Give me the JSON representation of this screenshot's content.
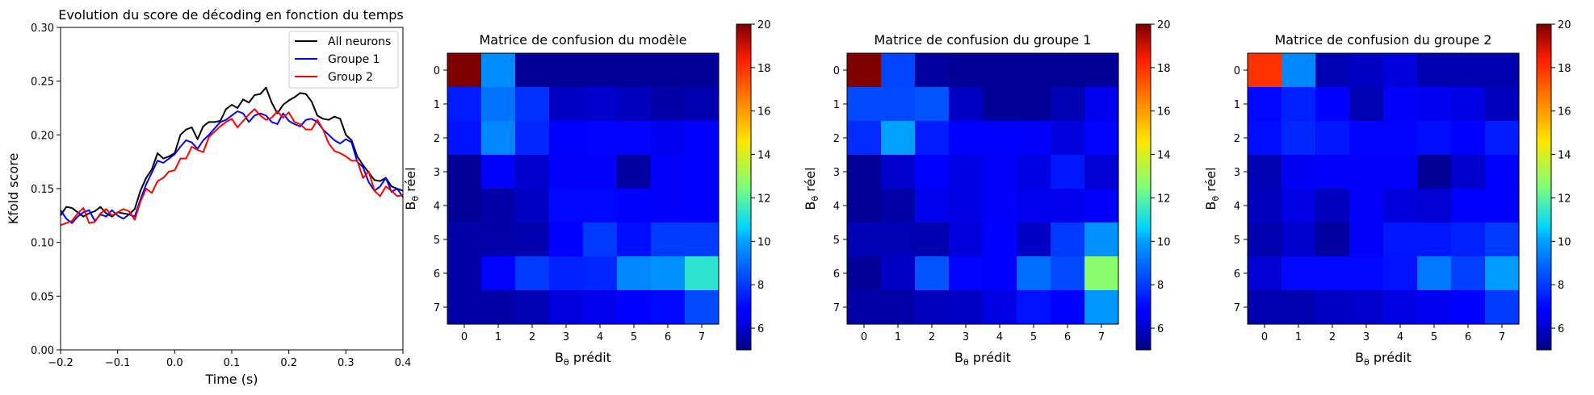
{
  "chart_data": [
    {
      "type": "line",
      "title": "Evolution du score de décoding en fonction du temps",
      "xlabel": "Time (s)",
      "ylabel": "Kfold score",
      "xlim": [
        -0.2,
        0.4
      ],
      "ylim": [
        0.0,
        0.3
      ],
      "xticks": [
        -0.2,
        -0.1,
        0.0,
        0.1,
        0.2,
        0.3,
        0.4
      ],
      "xtick_labels": [
        "−0.2",
        "−0.1",
        "0.0",
        "0.1",
        "0.2",
        "0.3",
        "0.4"
      ],
      "yticks": [
        0.0,
        0.05,
        0.1,
        0.15,
        0.2,
        0.25,
        0.3
      ],
      "ytick_labels": [
        "0.00",
        "0.05",
        "0.10",
        "0.15",
        "0.20",
        "0.25",
        "0.30"
      ],
      "legend_position": "top-right",
      "grid": false,
      "x": [
        -0.2,
        -0.19,
        -0.18,
        -0.17,
        -0.16,
        -0.15,
        -0.14,
        -0.13,
        -0.12,
        -0.11,
        -0.1,
        -0.09,
        -0.08,
        -0.07,
        -0.06,
        -0.05,
        -0.04,
        -0.03,
        -0.02,
        -0.01,
        0.0,
        0.01,
        0.02,
        0.03,
        0.04,
        0.05,
        0.06,
        0.07,
        0.08,
        0.09,
        0.1,
        0.11,
        0.12,
        0.13,
        0.14,
        0.15,
        0.16,
        0.17,
        0.18,
        0.19,
        0.2,
        0.21,
        0.22,
        0.23,
        0.24,
        0.25,
        0.26,
        0.27,
        0.28,
        0.29,
        0.3,
        0.31,
        0.32,
        0.33,
        0.34,
        0.35,
        0.36,
        0.37,
        0.38,
        0.39,
        0.4
      ],
      "series": [
        {
          "name": "All neurons",
          "color": "#000000",
          "values": [
            0.125,
            0.133,
            0.132,
            0.128,
            0.124,
            0.127,
            0.129,
            0.133,
            0.127,
            0.124,
            0.128,
            0.127,
            0.126,
            0.131,
            0.148,
            0.16,
            0.168,
            0.183,
            0.178,
            0.18,
            0.183,
            0.2,
            0.205,
            0.207,
            0.196,
            0.208,
            0.212,
            0.212,
            0.213,
            0.224,
            0.228,
            0.225,
            0.233,
            0.23,
            0.237,
            0.238,
            0.244,
            0.23,
            0.22,
            0.228,
            0.232,
            0.235,
            0.239,
            0.238,
            0.231,
            0.218,
            0.215,
            0.214,
            0.217,
            0.215,
            0.2,
            0.195,
            0.18,
            0.172,
            0.165,
            0.158,
            0.157,
            0.16,
            0.152,
            0.15,
            0.148
          ]
        },
        {
          "name": "Groupe 1",
          "color": "#0000ff",
          "values": [
            0.13,
            0.122,
            0.118,
            0.124,
            0.128,
            0.13,
            0.12,
            0.126,
            0.124,
            0.13,
            0.125,
            0.122,
            0.126,
            0.124,
            0.14,
            0.154,
            0.165,
            0.176,
            0.174,
            0.178,
            0.182,
            0.189,
            0.195,
            0.193,
            0.187,
            0.195,
            0.2,
            0.206,
            0.212,
            0.214,
            0.218,
            0.222,
            0.22,
            0.212,
            0.218,
            0.22,
            0.218,
            0.212,
            0.21,
            0.22,
            0.213,
            0.21,
            0.208,
            0.214,
            0.215,
            0.212,
            0.205,
            0.2,
            0.195,
            0.192,
            0.196,
            0.193,
            0.175,
            0.17,
            0.156,
            0.148,
            0.152,
            0.16,
            0.147,
            0.15,
            0.142
          ]
        },
        {
          "name": "Group 2",
          "color": "#ff0000",
          "values": [
            0.116,
            0.118,
            0.12,
            0.127,
            0.132,
            0.118,
            0.119,
            0.127,
            0.131,
            0.125,
            0.128,
            0.131,
            0.129,
            0.121,
            0.138,
            0.15,
            0.146,
            0.157,
            0.16,
            0.166,
            0.167,
            0.178,
            0.178,
            0.189,
            0.186,
            0.184,
            0.198,
            0.203,
            0.208,
            0.212,
            0.215,
            0.207,
            0.213,
            0.219,
            0.224,
            0.218,
            0.214,
            0.216,
            0.222,
            0.216,
            0.221,
            0.212,
            0.21,
            0.205,
            0.205,
            0.214,
            0.205,
            0.192,
            0.185,
            0.183,
            0.18,
            0.176,
            0.176,
            0.16,
            0.166,
            0.148,
            0.143,
            0.152,
            0.148,
            0.143,
            0.144
          ]
        }
      ]
    },
    {
      "type": "heatmap",
      "title": "Matrice de confusion du modèle",
      "xlabel": "B_θ prédit",
      "ylabel": "B_θ réel",
      "x_categories": [
        "0",
        "1",
        "2",
        "3",
        "4",
        "5",
        "6",
        "7"
      ],
      "y_categories": [
        "0",
        "1",
        "2",
        "3",
        "4",
        "5",
        "6",
        "7"
      ],
      "colormap": "jet",
      "vmin": 5,
      "vmax": 20,
      "colorbar_ticks": [
        6,
        8,
        10,
        12,
        14,
        16,
        18,
        20
      ],
      "values": [
        [
          20.0,
          9.6,
          5.3,
          5.3,
          5.3,
          5.3,
          5.3,
          5.3
        ],
        [
          7.4,
          9.1,
          7.8,
          5.9,
          6.0,
          5.8,
          5.5,
          5.6
        ],
        [
          7.2,
          9.5,
          7.6,
          6.8,
          6.9,
          6.9,
          6.5,
          6.8
        ],
        [
          5.3,
          6.8,
          6.0,
          6.6,
          6.6,
          5.4,
          6.6,
          6.7
        ],
        [
          5.3,
          5.5,
          5.9,
          7.0,
          7.0,
          6.7,
          6.6,
          6.8
        ],
        [
          5.5,
          5.5,
          5.6,
          6.7,
          8.0,
          7.1,
          8.0,
          8.0
        ],
        [
          5.5,
          6.9,
          8.0,
          7.5,
          7.6,
          9.5,
          9.7,
          11.3
        ],
        [
          5.5,
          5.5,
          5.7,
          6.2,
          6.4,
          6.8,
          7.0,
          8.3
        ]
      ]
    },
    {
      "type": "heatmap",
      "title": "Matrice de confusion du groupe 1",
      "xlabel": "B_θ prédit",
      "ylabel": "B_θ réel",
      "x_categories": [
        "0",
        "1",
        "2",
        "3",
        "4",
        "5",
        "6",
        "7"
      ],
      "y_categories": [
        "0",
        "1",
        "2",
        "3",
        "4",
        "5",
        "6",
        "7"
      ],
      "colormap": "jet",
      "vmin": 5,
      "vmax": 20,
      "colorbar_ticks": [
        6,
        8,
        10,
        12,
        14,
        16,
        18,
        20
      ],
      "values": [
        [
          20.0,
          8.2,
          5.4,
          5.3,
          5.3,
          5.3,
          5.3,
          5.3
        ],
        [
          8.3,
          8.3,
          8.5,
          5.9,
          5.3,
          5.3,
          5.7,
          6.4
        ],
        [
          7.7,
          10.0,
          7.4,
          6.8,
          6.8,
          6.6,
          6.2,
          6.9
        ],
        [
          5.3,
          6.0,
          6.8,
          6.3,
          6.6,
          6.3,
          7.3,
          6.1
        ],
        [
          5.3,
          5.5,
          6.4,
          6.3,
          6.6,
          6.4,
          6.4,
          6.6
        ],
        [
          5.7,
          5.7,
          5.6,
          6.2,
          6.7,
          5.9,
          8.0,
          9.7
        ],
        [
          5.3,
          5.9,
          8.5,
          6.9,
          6.8,
          9.0,
          8.3,
          12.7
        ],
        [
          5.5,
          5.5,
          5.8,
          5.9,
          6.3,
          7.2,
          6.8,
          9.8
        ]
      ]
    },
    {
      "type": "heatmap",
      "title": "Matrice de confusion du groupe 2",
      "xlabel": "B_θ prédit",
      "ylabel": "B_θ réel",
      "x_categories": [
        "0",
        "1",
        "2",
        "3",
        "4",
        "5",
        "6",
        "7"
      ],
      "y_categories": [
        "0",
        "1",
        "2",
        "3",
        "4",
        "5",
        "6",
        "7"
      ],
      "colormap": "jet",
      "vmin": 5,
      "vmax": 20,
      "colorbar_ticks": [
        6,
        8,
        10,
        12,
        14,
        16,
        18,
        20
      ],
      "values": [
        [
          18.0,
          9.5,
          5.7,
          5.9,
          6.2,
          5.6,
          5.6,
          5.6
        ],
        [
          7.0,
          7.5,
          6.7,
          5.7,
          6.6,
          6.5,
          6.3,
          5.8
        ],
        [
          7.1,
          7.6,
          7.3,
          6.9,
          6.9,
          7.1,
          6.8,
          7.4
        ],
        [
          5.7,
          6.5,
          6.6,
          6.6,
          6.6,
          5.3,
          6.0,
          6.8
        ],
        [
          5.8,
          6.3,
          5.8,
          6.6,
          6.2,
          6.1,
          6.7,
          6.7
        ],
        [
          5.6,
          6.0,
          5.4,
          6.6,
          7.3,
          7.3,
          7.5,
          8.0
        ],
        [
          6.1,
          7.0,
          7.0,
          7.0,
          7.2,
          9.2,
          8.1,
          9.9
        ],
        [
          5.6,
          5.6,
          5.9,
          6.0,
          6.3,
          6.5,
          6.8,
          8.0
        ]
      ]
    }
  ]
}
